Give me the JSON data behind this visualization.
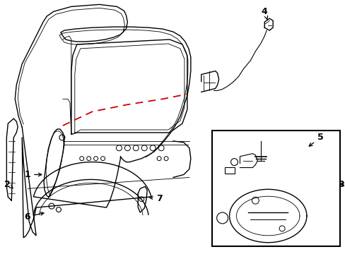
{
  "background_color": "#ffffff",
  "line_color": "#000000",
  "red_dash_color": "#cc0000",
  "figsize": [
    4.89,
    3.6
  ],
  "dpi": 100,
  "label_fontsize": 9
}
